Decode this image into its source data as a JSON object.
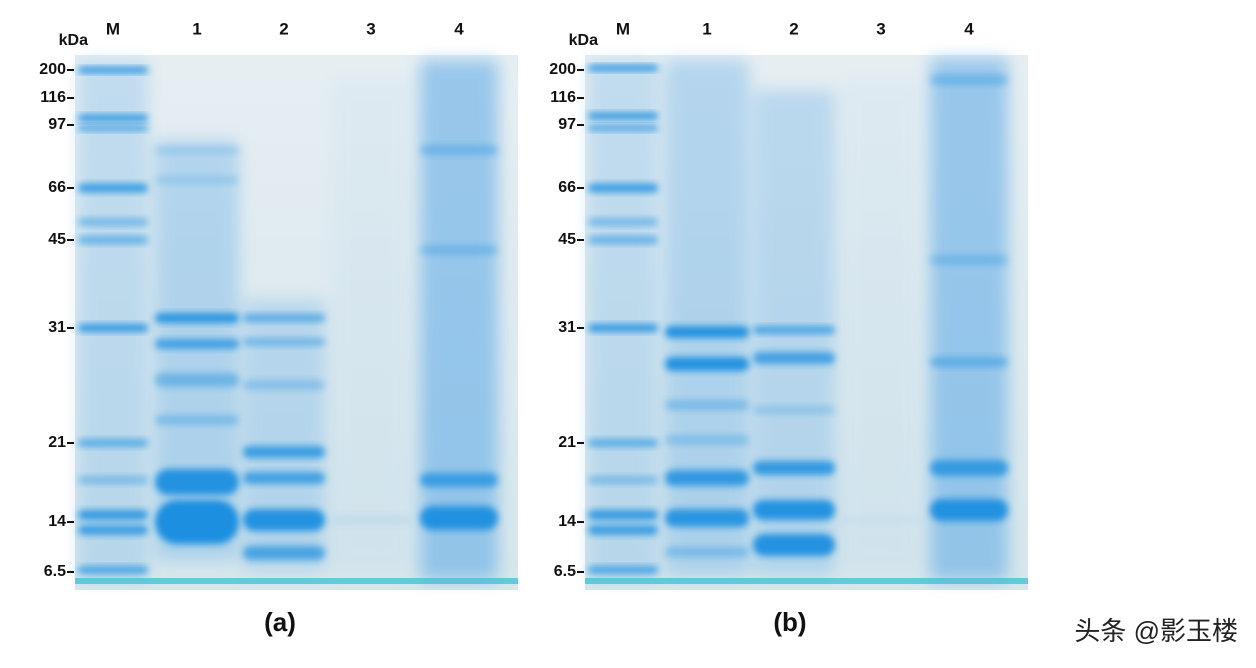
{
  "panels": [
    {
      "unit": "kDa",
      "lanes": [
        "M",
        "1",
        "2",
        "3",
        "4"
      ],
      "markers": [
        "200",
        "116",
        "97",
        "66",
        "45",
        "31",
        "21",
        "14",
        "6.5"
      ],
      "caption": "(a)"
    },
    {
      "unit": "kDa",
      "lanes": [
        "M",
        "1",
        "2",
        "3",
        "4"
      ],
      "markers": [
        "200",
        "116",
        "97",
        "66",
        "45",
        "31",
        "21",
        "14",
        "6.5"
      ],
      "caption": "(b)"
    }
  ],
  "watermark": "头条 @影玉楼"
}
